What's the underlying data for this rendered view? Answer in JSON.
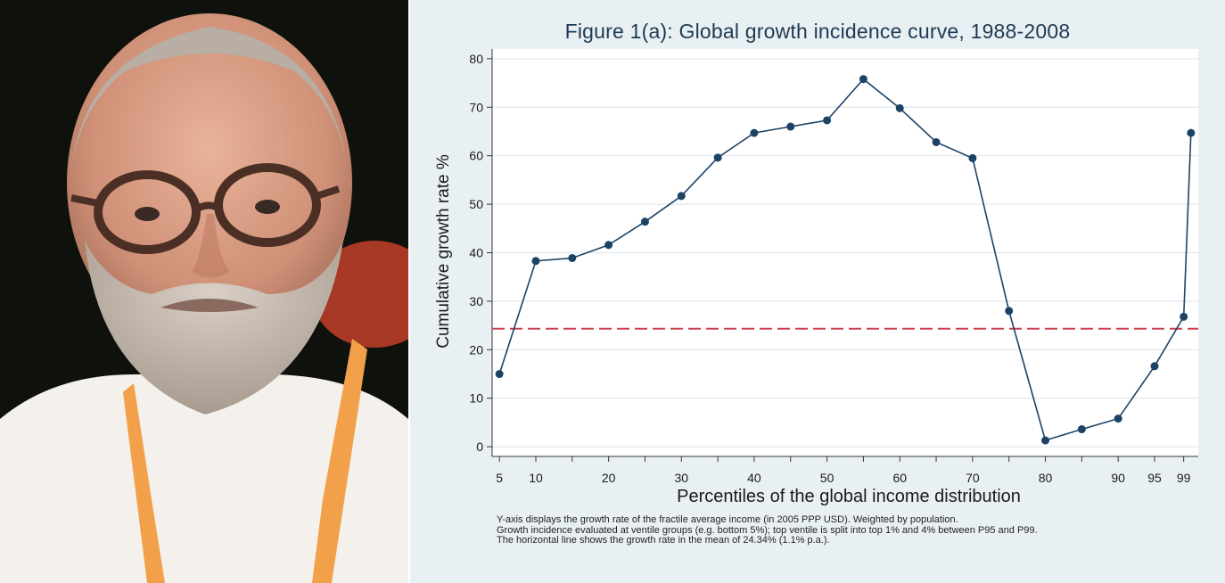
{
  "chart_data": {
    "type": "line",
    "title": "Figure 1(a): Global growth incidence curve, 1988-2008",
    "xlabel": "Percentiles of the global income distribution",
    "ylabel": "Cumulative growth rate %",
    "x_ticks": [
      5,
      10,
      20,
      30,
      40,
      50,
      60,
      70,
      80,
      90,
      95,
      99
    ],
    "x_tick_labels": [
      "5",
      "10",
      "20",
      "30",
      "40",
      "50",
      "60",
      "70",
      "80",
      "90",
      "95",
      "99"
    ],
    "y_ticks": [
      0,
      10,
      20,
      30,
      40,
      50,
      60,
      70,
      80
    ],
    "y_tick_labels": [
      "0",
      "10",
      "20",
      "30",
      "40",
      "50",
      "60",
      "70",
      "80"
    ],
    "xlim": [
      4,
      101
    ],
    "ylim": [
      -2,
      82
    ],
    "grid": "horizontal",
    "series": [
      {
        "x": [
          5,
          10,
          15,
          20,
          25,
          30,
          35,
          40,
          45,
          50,
          55,
          60,
          65,
          70,
          75,
          80,
          85,
          90,
          95,
          99,
          100
        ],
        "y": [
          15,
          38.3,
          38.9,
          41.6,
          46.4,
          51.7,
          59.6,
          64.7,
          66,
          67.3,
          75.8,
          69.8,
          62.8,
          59.5,
          28,
          1.3,
          3.6,
          5.8,
          16.6,
          26.8,
          64.7
        ],
        "color": "#1c4366"
      }
    ],
    "reference_line": {
      "y": 24.34,
      "color": "#c8434f",
      "style": "dashed"
    },
    "notes": [
      "Y-axis displays the growth rate of the fractile average income (in 2005 PPP USD). Weighted by population.",
      "Growth incidence evaluated at ventile groups (e.g. bottom 5%); top ventile is split into top 1% and 4% between P95 and P99.",
      "The horizontal line shows the growth rate in the mean of 24.34% (1.1% p.a.)."
    ]
  }
}
